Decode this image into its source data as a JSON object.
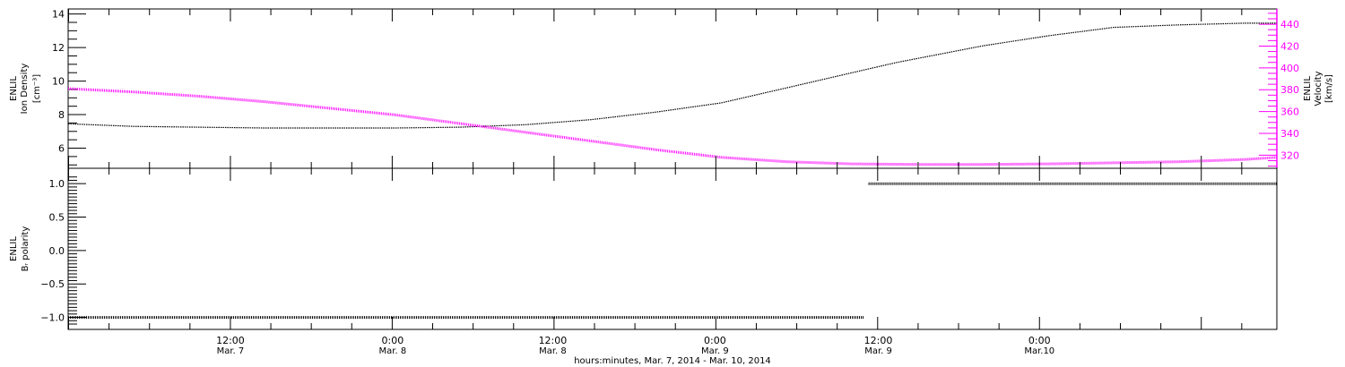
{
  "colors": {
    "density": "#000000",
    "velocity": "#ff00ff",
    "polarity": "#000000",
    "axis": "#000000"
  },
  "chart_data": [
    {
      "type": "line",
      "panel": "top",
      "ylabel_lines": [
        "ENLIL",
        "Ion Density",
        "[cm⁻³]"
      ],
      "ylabel_right_lines": [
        "ENLIL",
        "Velocity",
        "[km/s]"
      ],
      "ylim": [
        4.8,
        14.3
      ],
      "ylim_right": [
        308,
        454
      ],
      "yticks": [
        6,
        8,
        10,
        12,
        14
      ],
      "ytick_labels": [
        "6",
        "8",
        "10",
        "12",
        "14"
      ],
      "yticks_right": [
        320,
        340,
        360,
        380,
        400,
        420,
        440
      ],
      "ytick_labels_right": [
        "320",
        "340",
        "360",
        "380",
        "400",
        "420",
        "440"
      ],
      "series": [
        {
          "axis": "left",
          "x": [
            0,
            6,
            12,
            18,
            24,
            30,
            36,
            42,
            48,
            54,
            60,
            66,
            72,
            76,
            84,
            90,
            96,
            102,
            108,
            111
          ],
          "values": [
            7.45,
            7.3,
            7.25,
            7.2,
            7.2,
            7.2,
            7.25,
            7.4,
            7.7,
            8.15,
            8.7,
            9.6,
            10.5,
            11.1,
            12.1,
            12.7,
            13.2,
            13.35,
            13.45,
            13.45
          ]
        },
        {
          "axis": "right",
          "x": [
            0,
            6,
            12,
            18,
            24,
            30,
            36,
            42,
            48,
            54,
            60,
            66,
            72,
            78,
            84,
            90,
            96,
            102,
            108,
            111
          ],
          "values": [
            381,
            378,
            374,
            369,
            363,
            357,
            349,
            341,
            333,
            325,
            318,
            314,
            312,
            311.5,
            311.5,
            312,
            313,
            314,
            316,
            318
          ]
        }
      ]
    },
    {
      "type": "line",
      "panel": "bottom",
      "ylabel_lines": [
        "ENLIL",
        "Bᵣ polarity"
      ],
      "ylim": [
        -1.18,
        1.23
      ],
      "yticks": [
        -1.0,
        -0.5,
        0.0,
        0.5,
        1.0
      ],
      "ytick_labels": [
        "−1.0",
        "−0.5",
        "0.0",
        "0.5",
        "1.0"
      ],
      "series": [
        {
          "x": [
            0,
            73.1
          ],
          "values": [
            -1,
            -1
          ]
        },
        {
          "x": [
            73.5,
            111
          ],
          "values": [
            1,
            1
          ]
        }
      ]
    }
  ],
  "x_axis": {
    "range_hours": [
      0,
      111
    ],
    "major_ticks": [
      {
        "hour": 14.9,
        "time": "12:00",
        "date": "Mar. 7"
      },
      {
        "hour": 29.8,
        "time": "0:00",
        "date": "Mar. 8"
      },
      {
        "hour": 44.5,
        "time": "12:00",
        "date": "Mar. 8"
      },
      {
        "hour": 59.4,
        "time": "0:00",
        "date": "Mar. 9"
      },
      {
        "hour": 74.4,
        "time": "12:00",
        "date": "Mar. 9"
      },
      {
        "hour": 89.2,
        "time": "0:00",
        "date": "Mar.10"
      }
    ],
    "label": "hours:minutes, Mar.  7, 2014 - Mar. 10, 2014"
  }
}
